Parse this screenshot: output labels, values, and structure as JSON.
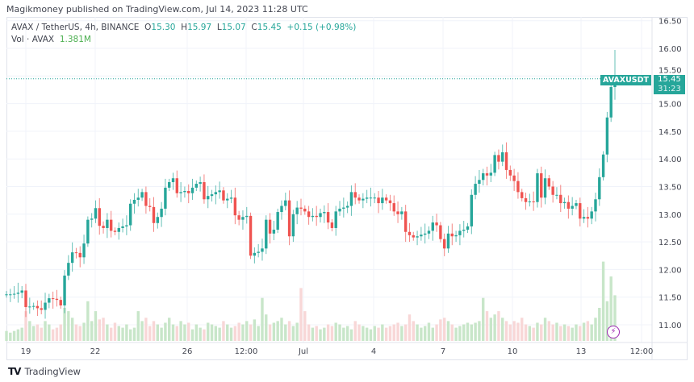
{
  "header": {
    "published": "Magikmoney published on TradingView.com, Jul 14, 2023 11:28 UTC",
    "symbol_line": "AVAX / TetherUS, 4h, BINANCE",
    "o_label": "O",
    "o": "15.30",
    "h_label": "H",
    "h": "15.97",
    "l_label": "L",
    "l": "15.07",
    "c_label": "C",
    "c": "15.45",
    "change": "+0.15 (+0.98%)",
    "vol_label": "Vol · AVAX",
    "vol": "1.381M"
  },
  "price_tag": {
    "symbol": "AVAXUSDT",
    "price": "15.45",
    "countdown": "31:23"
  },
  "footer": {
    "brand": "TradingView",
    "logo": "TV"
  },
  "colors": {
    "up": "#26a69a",
    "down": "#ef5350",
    "vol_up": "#c8e6c9",
    "vol_down": "#f8d7d7",
    "grid": "#f0f3fa",
    "alert": "#9c27b0"
  },
  "icons": {
    "alert": "lightning-icon"
  },
  "chart_data": {
    "type": "candlestick",
    "interval": "4h",
    "y_ticks": [
      "16.50",
      "16.00",
      "15.50",
      "15.00",
      "14.50",
      "14.00",
      "13.50",
      "13.00",
      "12.50",
      "12.00",
      "11.50",
      "11.00"
    ],
    "x_ticks": [
      "19",
      "22",
      "26",
      "12:00",
      "Jul",
      "4",
      "7",
      "10",
      "13",
      "12:00"
    ],
    "grid": true,
    "last_candle": {
      "open": 15.3,
      "high": 15.97,
      "low": 15.07,
      "close": 15.45
    },
    "close": [
      11.55,
      11.55,
      11.56,
      11.58,
      11.62,
      11.32,
      11.33,
      11.34,
      11.3,
      11.27,
      11.4,
      11.48,
      11.47,
      11.45,
      11.35,
      11.89,
      12.12,
      12.31,
      12.3,
      12.22,
      12.47,
      12.9,
      12.92,
      13.11,
      12.79,
      12.75,
      12.9,
      12.7,
      12.68,
      12.75,
      12.78,
      12.8,
      13.19,
      13.26,
      13.3,
      13.4,
      13.15,
      13.13,
      12.84,
      12.95,
      13.1,
      13.48,
      13.58,
      13.65,
      13.38,
      13.4,
      13.42,
      13.38,
      13.48,
      13.55,
      13.58,
      13.27,
      13.33,
      13.36,
      13.4,
      13.43,
      13.25,
      13.28,
      13.3,
      12.98,
      12.9,
      12.95,
      12.97,
      12.25,
      12.3,
      12.32,
      12.38,
      12.9,
      12.65,
      12.72,
      13.04,
      13.15,
      13.25,
      12.6,
      13.0,
      13.12,
      13.1,
      13.05,
      12.95,
      12.97,
      12.95,
      13.02,
      13.04,
      12.85,
      12.75,
      13.05,
      13.1,
      13.12,
      13.15,
      13.4,
      13.3,
      13.25,
      13.28,
      13.3,
      13.3,
      13.3,
      13.2,
      13.3,
      13.25,
      13.2,
      13.05,
      13.0,
      13.05,
      12.68,
      12.62,
      12.58,
      12.6,
      12.63,
      12.65,
      12.7,
      12.85,
      12.8,
      12.55,
      12.38,
      12.65,
      12.6,
      12.62,
      12.7,
      12.72,
      12.78,
      13.35,
      13.55,
      13.62,
      13.74,
      13.7,
      13.75,
      14.07,
      13.95,
      14.12,
      13.8,
      13.7,
      13.6,
      13.4,
      13.29,
      13.22,
      13.23,
      13.22,
      13.74,
      13.3,
      13.65,
      13.5,
      13.35,
      13.35,
      13.2,
      13.22,
      13.1,
      13.15,
      13.2,
      12.92,
      12.95,
      12.92,
      13.05,
      13.27,
      13.67,
      14.08,
      14.75,
      15.3,
      15.45
    ],
    "volume_m": [
      0.3,
      0.25,
      0.3,
      0.35,
      0.4,
      0.9,
      0.6,
      0.45,
      0.5,
      0.4,
      0.6,
      0.5,
      0.35,
      0.4,
      0.5,
      1.0,
      0.9,
      0.7,
      0.5,
      0.45,
      0.55,
      1.2,
      0.6,
      0.9,
      0.65,
      0.7,
      0.5,
      0.4,
      0.55,
      0.45,
      0.4,
      0.5,
      0.35,
      0.4,
      0.9,
      0.6,
      0.7,
      0.45,
      0.6,
      0.5,
      0.4,
      0.55,
      0.7,
      0.5,
      0.45,
      0.6,
      0.5,
      0.55,
      0.35,
      0.5,
      0.4,
      0.35,
      0.55,
      0.5,
      0.45,
      0.4,
      0.6,
      0.5,
      0.4,
      0.45,
      0.55,
      0.5,
      0.6,
      0.5,
      0.65,
      0.45,
      1.3,
      0.8,
      0.5,
      0.55,
      0.6,
      0.7,
      0.5,
      0.6,
      0.45,
      0.55,
      1.6,
      0.9,
      0.5,
      0.4,
      0.45,
      0.35,
      0.4,
      0.5,
      0.45,
      0.55,
      0.5,
      0.4,
      0.45,
      0.35,
      0.6,
      0.5,
      0.45,
      0.4,
      0.35,
      0.45,
      0.4,
      0.5,
      0.4,
      0.45,
      0.5,
      0.55,
      0.45,
      0.5,
      0.8,
      0.6,
      0.5,
      0.4,
      0.45,
      0.55,
      0.4,
      0.5,
      0.65,
      0.7,
      0.6,
      0.5,
      0.4,
      0.45,
      0.5,
      0.55,
      0.5,
      0.55,
      0.6,
      1.3,
      0.9,
      0.7,
      0.8,
      0.9,
      0.7,
      0.6,
      0.5,
      0.6,
      0.55,
      0.7,
      0.5,
      0.45,
      0.4,
      0.55,
      0.5,
      0.7,
      0.6,
      0.5,
      0.55,
      0.45,
      0.5,
      0.45,
      0.4,
      0.5,
      0.45,
      0.55,
      0.6,
      0.5,
      0.7,
      1.0,
      2.4,
      1.2,
      1.95,
      1.381
    ]
  }
}
